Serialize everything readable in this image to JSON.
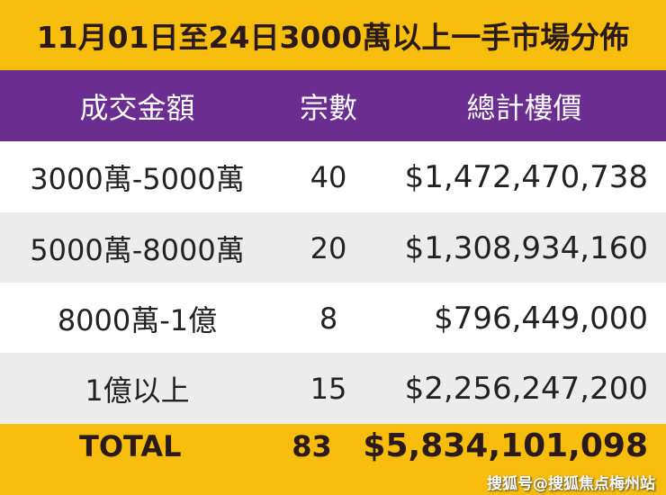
{
  "title": "11月01日至24日3000萬以上一手市場分佈",
  "headers": [
    "成交金額",
    "宗數",
    "總計樓價"
  ],
  "rows": [
    {
      "range": "3000萬-5000萬",
      "count": "40",
      "total": "$1,472,470,738"
    },
    {
      "range": "5000萬-8000萬",
      "count": "20",
      "total": "$1,308,934,160"
    },
    {
      "range": "8000萬-1億",
      "count": "8",
      "total": "$796,449,000"
    },
    {
      "range": "1億以上",
      "count": "15",
      "total": "$2,256,247,200"
    }
  ],
  "total": {
    "label": "TOTAL",
    "count": "83",
    "total": "$5,834,101,098"
  },
  "watermark": "搜狐号@搜狐焦点梅州站",
  "colors": {
    "yellow": "#f7bd0c",
    "purple": "#6c2d91",
    "stripe": "#ececec"
  }
}
